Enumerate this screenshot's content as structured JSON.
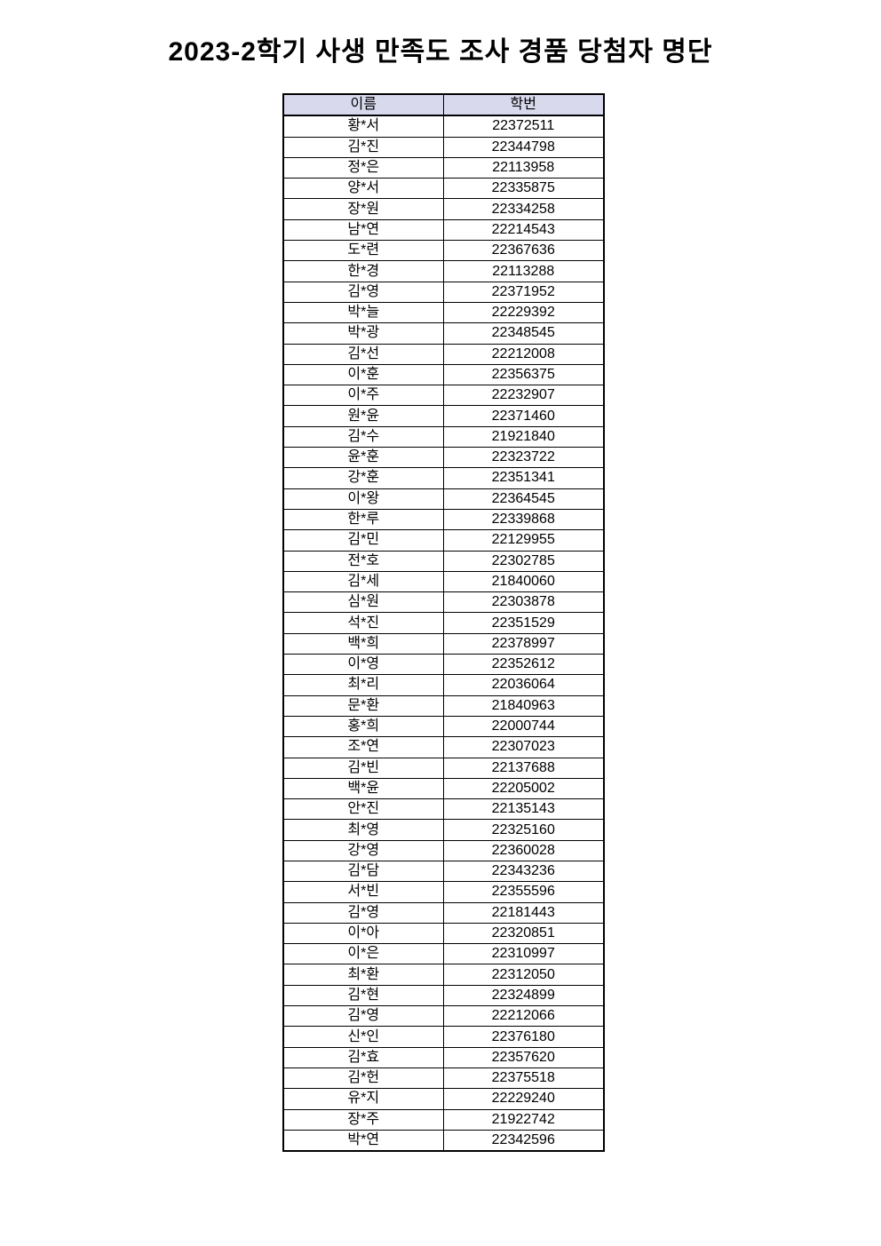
{
  "page": {
    "title": "2023-2학기 사생 만족도 조사 경품 당첨자 명단"
  },
  "table": {
    "headers": {
      "name": "이름",
      "student_id": "학번"
    },
    "header_bg": "#d9d9ee",
    "border_color": "#000000",
    "rows": [
      {
        "name": "황*서",
        "student_id": "22372511"
      },
      {
        "name": "김*진",
        "student_id": "22344798"
      },
      {
        "name": "정*은",
        "student_id": "22113958"
      },
      {
        "name": "양*서",
        "student_id": "22335875"
      },
      {
        "name": "장*원",
        "student_id": "22334258"
      },
      {
        "name": "남*연",
        "student_id": "22214543"
      },
      {
        "name": "도*련",
        "student_id": "22367636"
      },
      {
        "name": "한*경",
        "student_id": "22113288"
      },
      {
        "name": "김*영",
        "student_id": "22371952"
      },
      {
        "name": "박*늘",
        "student_id": "22229392"
      },
      {
        "name": "박*광",
        "student_id": "22348545"
      },
      {
        "name": "김*선",
        "student_id": "22212008"
      },
      {
        "name": "이*훈",
        "student_id": "22356375"
      },
      {
        "name": "이*주",
        "student_id": "22232907"
      },
      {
        "name": "원*윤",
        "student_id": "22371460"
      },
      {
        "name": "김*수",
        "student_id": "21921840"
      },
      {
        "name": "윤*훈",
        "student_id": "22323722"
      },
      {
        "name": "강*훈",
        "student_id": "22351341"
      },
      {
        "name": "이*왕",
        "student_id": "22364545"
      },
      {
        "name": "한*루",
        "student_id": "22339868"
      },
      {
        "name": "김*민",
        "student_id": "22129955"
      },
      {
        "name": "전*호",
        "student_id": "22302785"
      },
      {
        "name": "김*세",
        "student_id": "21840060"
      },
      {
        "name": "심*원",
        "student_id": "22303878"
      },
      {
        "name": "석*진",
        "student_id": "22351529"
      },
      {
        "name": "백*희",
        "student_id": "22378997"
      },
      {
        "name": "이*영",
        "student_id": "22352612"
      },
      {
        "name": "최*리",
        "student_id": "22036064"
      },
      {
        "name": "문*환",
        "student_id": "21840963"
      },
      {
        "name": "홍*희",
        "student_id": "22000744"
      },
      {
        "name": "조*연",
        "student_id": "22307023"
      },
      {
        "name": "김*빈",
        "student_id": "22137688"
      },
      {
        "name": "백*윤",
        "student_id": "22205002"
      },
      {
        "name": "안*진",
        "student_id": "22135143"
      },
      {
        "name": "최*영",
        "student_id": "22325160"
      },
      {
        "name": "강*영",
        "student_id": "22360028"
      },
      {
        "name": "김*담",
        "student_id": "22343236"
      },
      {
        "name": "서*빈",
        "student_id": "22355596"
      },
      {
        "name": "김*영",
        "student_id": "22181443"
      },
      {
        "name": "이*아",
        "student_id": "22320851"
      },
      {
        "name": "이*은",
        "student_id": "22310997"
      },
      {
        "name": "최*환",
        "student_id": "22312050"
      },
      {
        "name": "김*현",
        "student_id": "22324899"
      },
      {
        "name": "김*영",
        "student_id": "22212066"
      },
      {
        "name": "신*인",
        "student_id": "22376180"
      },
      {
        "name": "김*효",
        "student_id": "22357620"
      },
      {
        "name": "김*헌",
        "student_id": "22375518"
      },
      {
        "name": "유*지",
        "student_id": "22229240"
      },
      {
        "name": "장*주",
        "student_id": "21922742"
      },
      {
        "name": "박*연",
        "student_id": "22342596"
      }
    ]
  }
}
